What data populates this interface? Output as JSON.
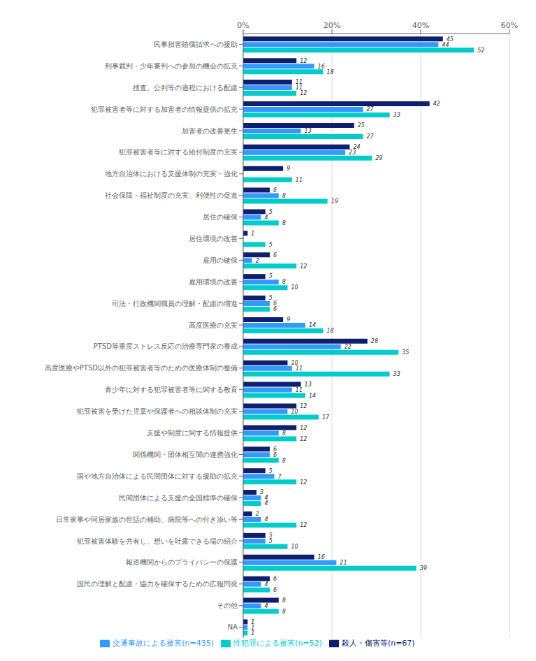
{
  "chart_data": {
    "type": "bar",
    "orientation": "horizontal",
    "categories": [
      "民事損害賠償請求への援助",
      "刑事裁判・少年審判への参加の機会の拡充",
      "捜査、公判等の過程における配慮",
      "犯罪被害者等に対する加害者の情報提供の拡充",
      "加害者の改善更生",
      "犯罪被害者等に対する給付制度の充実",
      "地方自治体における支援体制の充実・強化",
      "社会保障・福祉制度の充実、利便性の促進",
      "居住の確保",
      "居住環境の改善",
      "雇用の確保",
      "雇用環境の改善",
      "司法・行政機関職員の理解・配慮の増進",
      "高度医療の充実",
      "PTSD等重度ストレス反応の治療専門家の養成",
      "高度医療やPTSD以外の犯罪被害者等のための医療体制の整備",
      "青少年に対する犯罪被害者等に関する教育",
      "犯罪被害を受けた児童や保護者への相談体制の充実",
      "支援や制度に関する情報提供",
      "関係機関・団体相互間の連携強化",
      "国や地方自治体による民間団体に対する援助の拡充",
      "民間団体による支援の全国標準の確保",
      "日常家事や同居家族の世話の補助、病院等への付き添い等",
      "犯罪被害体験を共有し、想いを吐露できる場の紹介",
      "報道機関からのプライバシーの保護",
      "国民の理解と配慮・協力を確保するための広報問発",
      "その他",
      "NA"
    ],
    "series": [
      {
        "name": "殺人・傷害等(n=67)",
        "color": "#0d1f6e",
        "values": [
          45,
          12,
          11,
          42,
          25,
          24,
          9,
          6,
          5,
          1,
          6,
          5,
          5,
          9,
          28,
          10,
          13,
          12,
          12,
          6,
          5,
          3,
          2,
          5,
          16,
          6,
          8,
          1
        ]
      },
      {
        "name": "交通事故による被害(n=435)",
        "color": "#3399ff",
        "values": [
          44,
          16,
          11,
          27,
          13,
          23,
          0,
          8,
          4,
          0,
          2,
          8,
          6,
          14,
          22,
          11,
          11,
          10,
          8,
          6,
          7,
          4,
          4,
          5,
          21,
          4,
          4,
          1
        ]
      },
      {
        "name": "性犯罪による被害(n=52)",
        "color": "#00cccc",
        "values": [
          52,
          18,
          12,
          33,
          27,
          29,
          11,
          19,
          8,
          5,
          12,
          10,
          6,
          18,
          35,
          33,
          14,
          17,
          12,
          8,
          12,
          4,
          12,
          10,
          39,
          6,
          8,
          1
        ]
      }
    ],
    "xlim": [
      0,
      60
    ],
    "xticks": [
      {
        "value": 0,
        "label": "0%"
      },
      {
        "value": 20,
        "label": "20%"
      },
      {
        "value": 40,
        "label": "40%"
      },
      {
        "value": 60,
        "label": "60%"
      }
    ],
    "grid": true,
    "legend": "bottom",
    "data_labels": true
  }
}
